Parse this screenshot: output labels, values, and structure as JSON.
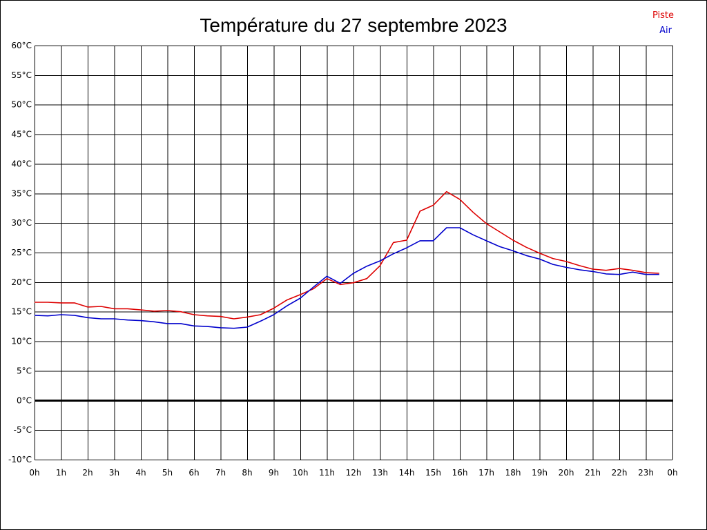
{
  "chart_data": {
    "type": "line",
    "title": "Température du 27 septembre 2023",
    "xlabel": "",
    "ylabel": "",
    "xlim": [
      0,
      24
    ],
    "ylim": [
      -10,
      60
    ],
    "grid": true,
    "legend_position": "top-right",
    "x_tick_labels": [
      "0h",
      "1h",
      "2h",
      "3h",
      "4h",
      "5h",
      "6h",
      "7h",
      "8h",
      "9h",
      "10h",
      "11h",
      "12h",
      "13h",
      "14h",
      "15h",
      "16h",
      "17h",
      "18h",
      "19h",
      "20h",
      "21h",
      "22h",
      "23h",
      "0h"
    ],
    "y_tick_labels": [
      "60°C",
      "55°C",
      "50°C",
      "45°C",
      "40°C",
      "35°C",
      "30°C",
      "25°C",
      "20°C",
      "15°C",
      "10°C",
      "5°C",
      "0°C",
      "-5°C",
      "-10°C"
    ],
    "y_tick_values": [
      60,
      55,
      50,
      45,
      40,
      35,
      30,
      25,
      20,
      15,
      10,
      5,
      0,
      -5,
      -10
    ],
    "zero_line": 0,
    "x": [
      0,
      0.5,
      1,
      1.5,
      2,
      2.5,
      3,
      3.5,
      4,
      4.5,
      5,
      5.5,
      6,
      6.5,
      7,
      7.5,
      8,
      8.5,
      9,
      9.5,
      10,
      10.5,
      11,
      11.5,
      12,
      12.5,
      13,
      13.5,
      14,
      14.5,
      15,
      15.5,
      16,
      16.5,
      17,
      17.5,
      18,
      18.5,
      19,
      19.5,
      20,
      20.5,
      21,
      21.5,
      22,
      22.5,
      23,
      23.5
    ],
    "series": [
      {
        "name": "Piste",
        "color": "#dd0000",
        "values": [
          16.6,
          16.6,
          16.5,
          16.5,
          15.8,
          15.9,
          15.5,
          15.5,
          15.3,
          15.1,
          15.2,
          15.0,
          14.5,
          14.3,
          14.2,
          13.8,
          14.1,
          14.5,
          15.6,
          17.0,
          17.9,
          18.9,
          20.6,
          19.6,
          19.9,
          20.6,
          22.8,
          26.7,
          27.1,
          32.0,
          33.0,
          35.3,
          34.0,
          31.8,
          29.9,
          28.5,
          27.1,
          25.9,
          24.9,
          24.0,
          23.5,
          22.8,
          22.2,
          22.0,
          22.3,
          22.0,
          21.6,
          21.5
        ]
      },
      {
        "name": "Air",
        "color": "#0000cc",
        "values": [
          14.4,
          14.3,
          14.5,
          14.4,
          14.0,
          13.8,
          13.8,
          13.6,
          13.5,
          13.3,
          13.0,
          13.0,
          12.6,
          12.5,
          12.3,
          12.2,
          12.4,
          13.4,
          14.5,
          16.0,
          17.3,
          19.2,
          21.0,
          19.8,
          21.5,
          22.7,
          23.6,
          24.8,
          25.8,
          27.0,
          27.0,
          29.2,
          29.2,
          28.0,
          27.0,
          26.0,
          25.3,
          24.5,
          23.9,
          23.0,
          22.5,
          22.1,
          21.8,
          21.4,
          21.3,
          21.7,
          21.3,
          21.3
        ]
      }
    ]
  }
}
